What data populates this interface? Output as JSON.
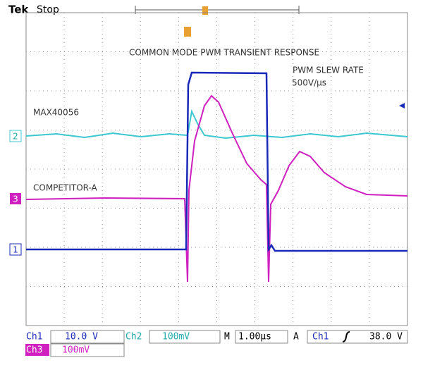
{
  "header": {
    "brand": "Tek",
    "status": "Stop"
  },
  "annotations": {
    "title": "COMMON MODE PWM TRANSIENT RESPONSE",
    "slew_label": "PWM SLEW RATE",
    "slew_value": "500V/µs",
    "trace_a": "MAX40056",
    "trace_b": "COMPETITOR-A"
  },
  "markers": {
    "ch2": "2",
    "ch3": "3",
    "ch1": "1"
  },
  "readout": {
    "ch1_label": "Ch1",
    "ch1_scale": "10.0 V",
    "ch2_label": "Ch2",
    "ch2_scale": "100mV",
    "time_label": "M",
    "time_scale": "1.00µs",
    "trig_mode": "A",
    "trig_source": "Ch1",
    "trig_level": "38.0 V",
    "ch3_label": "Ch3",
    "ch3_scale": "100mV"
  }
}
